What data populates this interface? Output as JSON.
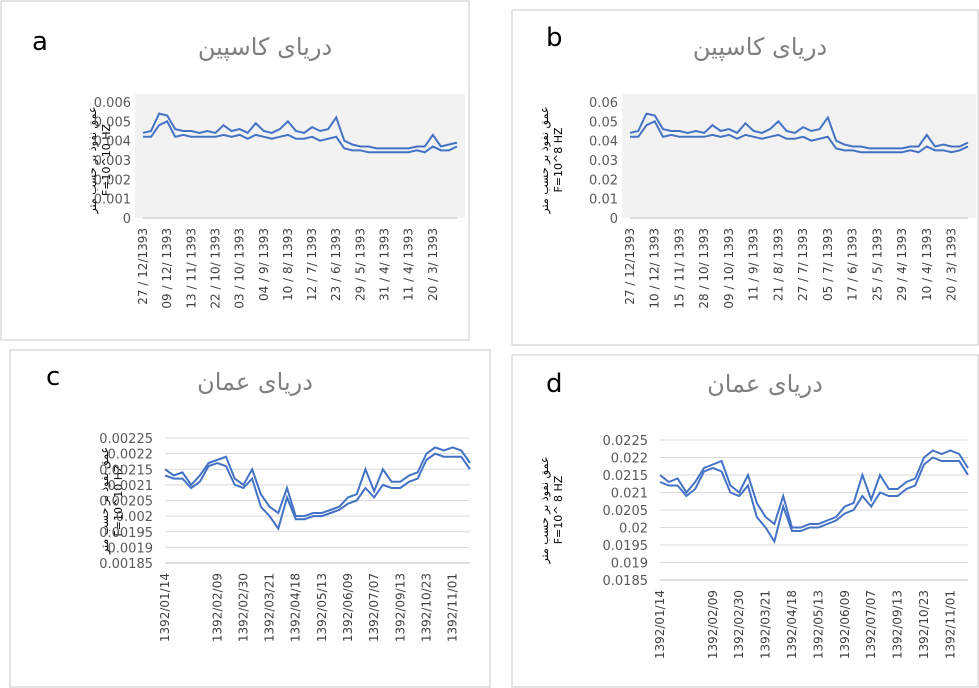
{
  "chart_data": [
    {
      "type": "line",
      "panel": "a",
      "title": "دریای کاسپین",
      "ylabel": [
        "عمق نفوذ بر حسب متر",
        "F=10^10 HZ"
      ],
      "background": "#f2f2f2",
      "grid": false,
      "categories": [
        "27 / 12/1393",
        null,
        null,
        "09 / 12/ 1393",
        null,
        null,
        "13 / 11/ 1393",
        null,
        null,
        "22 / 10/ 1393",
        null,
        null,
        "03 / 10/ 1393",
        null,
        null,
        "04 / 9/ 1393",
        null,
        null,
        "10 / 8/ 1393",
        null,
        null,
        "12 / 7/ 1393",
        null,
        null,
        "23 / 6/ 1393",
        null,
        null,
        "29 / 5/ 1393",
        null,
        null,
        "31 / 4/ 1393",
        null,
        null,
        "11 / 4/ 1393",
        null,
        null,
        "20 / 3/ 1393",
        null,
        null,
        null
      ],
      "series": [
        {
          "color": "#4472c4",
          "values": [
            0.0044,
            0.0045,
            0.0054,
            0.0053,
            0.0046,
            0.0045,
            0.0045,
            0.0044,
            0.0045,
            0.0044,
            0.0048,
            0.0045,
            0.0046,
            0.0044,
            0.0049,
            0.0045,
            0.0044,
            0.0046,
            0.005,
            0.0045,
            0.0044,
            0.0047,
            0.0045,
            0.0046,
            0.0052,
            0.004,
            0.0038,
            0.0037,
            0.0037,
            0.0036,
            0.0036,
            0.0036,
            0.0036,
            0.0036,
            0.0037,
            0.0037,
            0.0043,
            0.0037,
            0.0038,
            0.0039
          ]
        },
        {
          "color": "#4472c4",
          "values": [
            0.0042,
            0.0042,
            0.0048,
            0.005,
            0.0042,
            0.0043,
            0.0042,
            0.0042,
            0.0042,
            0.0042,
            0.0043,
            0.0042,
            0.0043,
            0.0041,
            0.0043,
            0.0042,
            0.0041,
            0.0042,
            0.0043,
            0.0041,
            0.0041,
            0.0042,
            0.004,
            0.0041,
            0.0042,
            0.0036,
            0.0035,
            0.0035,
            0.0034,
            0.0034,
            0.0034,
            0.0034,
            0.0034,
            0.0034,
            0.0035,
            0.0034,
            0.0037,
            0.0035,
            0.0035,
            0.0037
          ]
        }
      ],
      "ylim": [
        0,
        0.006
      ],
      "yticks": [
        0,
        0.001,
        0.002,
        0.003,
        0.004,
        0.005,
        0.006
      ]
    },
    {
      "type": "line",
      "panel": "b",
      "title": "دریای کاسپین",
      "ylabel": [
        "عمق نفوذ بر حسب متر",
        "F=10^8 HZ"
      ],
      "background": "#f2f2f2",
      "grid": false,
      "categories": [
        "27 / 12/1393",
        null,
        null,
        "10 / 12/ 1393",
        null,
        null,
        "15 / 11/ 1393",
        null,
        null,
        "28 / 10/ 1393",
        null,
        null,
        "09 / 10/ 1393",
        null,
        null,
        "11 / 9/ 1393",
        null,
        null,
        "21 / 8/ 1393",
        null,
        null,
        "27 / 7/ 1393",
        null,
        null,
        "05 / 7/ 1393",
        null,
        null,
        "17 / 6/ 1393",
        null,
        null,
        "25 / 5/ 1393",
        null,
        null,
        "29 / 4/ 1393",
        null,
        null,
        "10 / 4/ 1393",
        null,
        null,
        "20 / 3/ 1393",
        null,
        null
      ],
      "series": [
        {
          "color": "#4472c4",
          "values": [
            0.044,
            0.045,
            0.054,
            0.053,
            0.046,
            0.045,
            0.045,
            0.044,
            0.045,
            0.044,
            0.048,
            0.045,
            0.046,
            0.044,
            0.049,
            0.045,
            0.044,
            0.046,
            0.05,
            0.045,
            0.044,
            0.047,
            0.045,
            0.046,
            0.052,
            0.04,
            0.038,
            0.037,
            0.037,
            0.036,
            0.036,
            0.036,
            0.036,
            0.036,
            0.037,
            0.037,
            0.043,
            0.037,
            0.038,
            0.037,
            0.037,
            0.039
          ]
        },
        {
          "color": "#4472c4",
          "values": [
            0.042,
            0.042,
            0.048,
            0.05,
            0.042,
            0.043,
            0.042,
            0.042,
            0.042,
            0.042,
            0.043,
            0.042,
            0.043,
            0.041,
            0.043,
            0.042,
            0.041,
            0.042,
            0.043,
            0.041,
            0.041,
            0.042,
            0.04,
            0.041,
            0.042,
            0.036,
            0.035,
            0.035,
            0.034,
            0.034,
            0.034,
            0.034,
            0.034,
            0.034,
            0.035,
            0.034,
            0.037,
            0.035,
            0.035,
            0.034,
            0.035,
            0.037
          ]
        }
      ],
      "ylim": [
        0,
        0.06
      ],
      "yticks": [
        0,
        0.01,
        0.02,
        0.03,
        0.04,
        0.05,
        0.06
      ]
    },
    {
      "type": "line",
      "panel": "c",
      "title": "دریای عمان",
      "ylabel": [
        "عمق نفوذ بر حسب متر",
        "F=10^10 HZ"
      ],
      "background": "#ffffff",
      "grid": true,
      "categories": [
        "1392/01/14",
        null,
        null,
        null,
        null,
        null,
        "1392/02/09",
        null,
        null,
        "1392/02/30",
        null,
        null,
        "1392/03/21",
        null,
        null,
        "1392/04/18",
        null,
        null,
        "1392/05/13",
        null,
        null,
        "1392/06/09",
        null,
        null,
        "1392/07/07",
        null,
        null,
        "1392/09/13",
        null,
        null,
        "1392/10/23",
        null,
        null,
        "1392/11/01",
        null,
        null
      ],
      "series": [
        {
          "color": "#4472c4",
          "values": [
            0.00215,
            0.00213,
            0.00214,
            0.0021,
            0.00213,
            0.00217,
            0.00218,
            0.00219,
            0.00212,
            0.0021,
            0.00215,
            0.00207,
            0.00203,
            0.00201,
            0.00209,
            0.002,
            0.002,
            0.00201,
            0.00201,
            0.00202,
            0.00203,
            0.00206,
            0.00207,
            0.00215,
            0.00208,
            0.00215,
            0.00211,
            0.00211,
            0.00213,
            0.00214,
            0.0022,
            0.00222,
            0.00221,
            0.00222,
            0.00221,
            0.00217
          ]
        },
        {
          "color": "#4472c4",
          "values": [
            0.00213,
            0.00212,
            0.00212,
            0.00209,
            0.00211,
            0.00216,
            0.00217,
            0.00216,
            0.0021,
            0.00209,
            0.00212,
            0.00203,
            0.002,
            0.00196,
            0.00206,
            0.00199,
            0.00199,
            0.002,
            0.002,
            0.00201,
            0.00202,
            0.00204,
            0.00205,
            0.00209,
            0.00206,
            0.0021,
            0.00209,
            0.00209,
            0.00211,
            0.00212,
            0.00218,
            0.0022,
            0.00219,
            0.00219,
            0.00219,
            0.00215
          ]
        }
      ],
      "ylim": [
        0.00185,
        0.00225
      ],
      "yticks": [
        0.00185,
        0.0019,
        0.00195,
        0.002,
        0.00205,
        0.0021,
        0.00215,
        0.0022,
        0.00225
      ]
    },
    {
      "type": "line",
      "panel": "d",
      "title": "دریای عمان",
      "ylabel": [
        "عمق نفوذ بر حسب متر",
        "F=10^ 8 HZ"
      ],
      "background": "#ffffff",
      "grid": true,
      "categories": [
        "1392/01/14",
        null,
        null,
        null,
        null,
        null,
        "1392/02/09",
        null,
        null,
        "1392/02/30",
        null,
        null,
        "1392/03/21",
        null,
        null,
        "1392/04/18",
        null,
        null,
        "1392/05/13",
        null,
        null,
        "1392/06/09",
        null,
        null,
        "1392/07/07",
        null,
        null,
        "1392/09/13",
        null,
        null,
        "1392/10/23",
        null,
        null,
        "1392/11/01",
        null,
        null
      ],
      "series": [
        {
          "color": "#4472c4",
          "values": [
            0.0215,
            0.0213,
            0.0214,
            0.021,
            0.0213,
            0.0217,
            0.0218,
            0.0219,
            0.0212,
            0.021,
            0.0215,
            0.0207,
            0.0203,
            0.0201,
            0.0209,
            0.02,
            0.02,
            0.0201,
            0.0201,
            0.0202,
            0.0203,
            0.0206,
            0.0207,
            0.0215,
            0.0208,
            0.0215,
            0.0211,
            0.0211,
            0.0213,
            0.0214,
            0.022,
            0.0222,
            0.0221,
            0.0222,
            0.0221,
            0.0217
          ]
        },
        {
          "color": "#4472c4",
          "values": [
            0.0213,
            0.0212,
            0.0212,
            0.0209,
            0.0211,
            0.0216,
            0.0217,
            0.0216,
            0.021,
            0.0209,
            0.0212,
            0.0203,
            0.02,
            0.0196,
            0.0206,
            0.0199,
            0.0199,
            0.02,
            0.02,
            0.0201,
            0.0202,
            0.0204,
            0.0205,
            0.0209,
            0.0206,
            0.021,
            0.0209,
            0.0209,
            0.0211,
            0.0212,
            0.0218,
            0.022,
            0.0219,
            0.0219,
            0.0219,
            0.0215
          ]
        }
      ],
      "ylim": [
        0.0185,
        0.0225
      ],
      "yticks": [
        0.0185,
        0.019,
        0.0195,
        0.02,
        0.0205,
        0.021,
        0.0215,
        0.022,
        0.0225
      ]
    }
  ]
}
